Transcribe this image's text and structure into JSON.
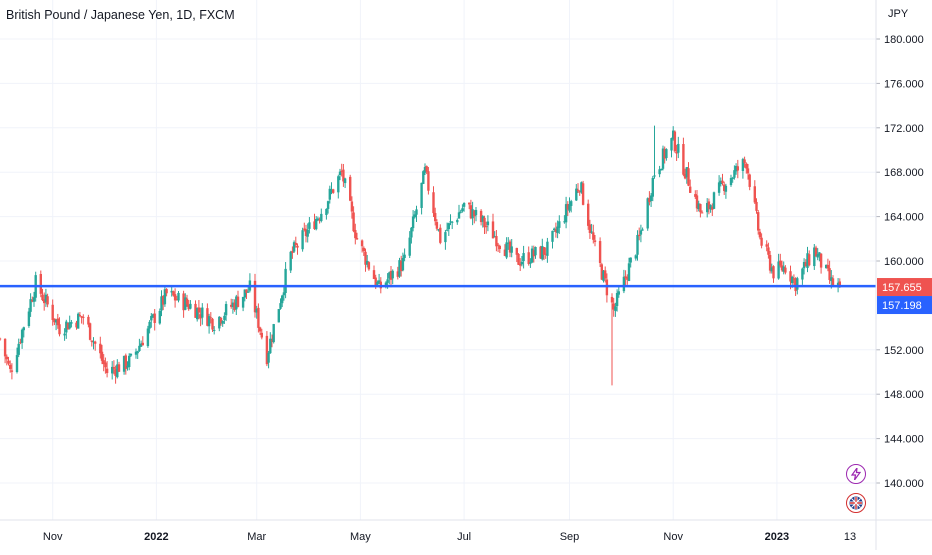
{
  "chart_data": {
    "type": "candlestick",
    "title": "British Pound / Japanese Yen, 1D, FXCM",
    "currency": "JPY",
    "y_ticks": [
      "180.000",
      "176.000",
      "172.000",
      "168.000",
      "164.000",
      "160.000",
      "152.000",
      "148.000",
      "144.000",
      "140.000"
    ],
    "ylim": [
      136.5,
      181.5
    ],
    "x_labels": [
      "Nov",
      "2022",
      "Mar",
      "May",
      "Jul",
      "Sep",
      "Nov",
      "2023",
      "13"
    ],
    "grid": true,
    "last_price": "157.655",
    "support_level": "157.198",
    "colors": {
      "up": "#26a69a",
      "down": "#ef5350",
      "line": "#2962ff",
      "grid": "#f0f3fa",
      "text": "#131722"
    },
    "path_points": [
      {
        "date": "2021-10-01",
        "close": 153.0
      },
      {
        "date": "2021-10-07",
        "close": 150.0
      },
      {
        "date": "2021-10-22",
        "close": 158.0
      },
      {
        "date": "2021-11-05",
        "close": 154.0
      },
      {
        "date": "2021-11-19",
        "close": 155.0
      },
      {
        "date": "2021-12-03",
        "close": 150.0
      },
      {
        "date": "2021-12-17",
        "close": 151.0
      },
      {
        "date": "2022-01-07",
        "close": 157.0
      },
      {
        "date": "2022-01-21",
        "close": 156.0
      },
      {
        "date": "2022-02-04",
        "close": 154.5
      },
      {
        "date": "2022-02-25",
        "close": 157.5
      },
      {
        "date": "2022-03-07",
        "close": 151.5
      },
      {
        "date": "2022-03-21",
        "close": 160.5
      },
      {
        "date": "2022-04-08",
        "close": 164.5
      },
      {
        "date": "2022-04-20",
        "close": 168.0
      },
      {
        "date": "2022-04-29",
        "close": 162.0
      },
      {
        "date": "2022-05-12",
        "close": 157.5
      },
      {
        "date": "2022-05-27",
        "close": 160.0
      },
      {
        "date": "2022-06-08",
        "close": 168.0
      },
      {
        "date": "2022-06-17",
        "close": 162.0
      },
      {
        "date": "2022-07-01",
        "close": 165.0
      },
      {
        "date": "2022-07-15",
        "close": 163.0
      },
      {
        "date": "2022-08-01",
        "close": 160.0
      },
      {
        "date": "2022-08-19",
        "close": 161.0
      },
      {
        "date": "2022-09-07",
        "close": 167.0
      },
      {
        "date": "2022-09-16",
        "close": 161.0
      },
      {
        "date": "2022-09-27",
        "close": 155.5
      },
      {
        "date": "2022-10-12",
        "close": 162.0
      },
      {
        "date": "2022-10-21",
        "close": 168.0
      },
      {
        "date": "2022-11-01",
        "close": 171.0
      },
      {
        "date": "2022-11-18",
        "close": 164.0
      },
      {
        "date": "2022-12-01",
        "close": 167.0
      },
      {
        "date": "2022-12-14",
        "close": 169.0
      },
      {
        "date": "2022-12-22",
        "close": 162.0
      },
      {
        "date": "2022-12-30",
        "close": 159.0
      },
      {
        "date": "2023-01-06",
        "close": 159.5
      },
      {
        "date": "2023-01-12",
        "close": 158.0
      },
      {
        "date": "2023-01-23",
        "close": 161.0
      },
      {
        "date": "2023-02-02",
        "close": 158.0
      },
      {
        "date": "2023-02-07",
        "close": 157.655
      }
    ],
    "spikes": [
      {
        "date": "2022-09-26",
        "low": 148.8
      },
      {
        "date": "2022-10-21",
        "high": 172.2
      }
    ]
  },
  "icons": [
    "flash-icon",
    "uk-flag-icon"
  ]
}
